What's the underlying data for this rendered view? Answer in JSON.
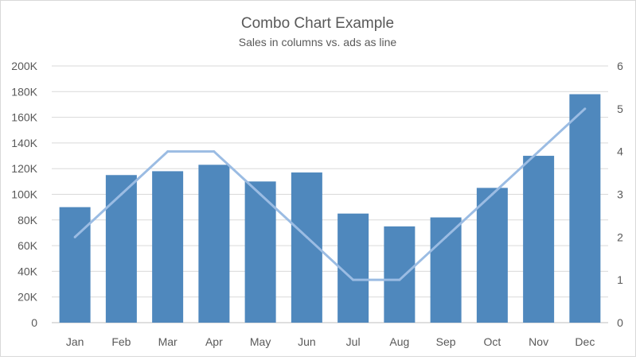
{
  "chart_data": {
    "type": "bar+line",
    "title": "Combo Chart Example",
    "subtitle": "Sales in columns vs. ads as line",
    "categories": [
      "Jan",
      "Feb",
      "Mar",
      "Apr",
      "May",
      "Jun",
      "Jul",
      "Aug",
      "Sep",
      "Oct",
      "Nov",
      "Dec"
    ],
    "series": [
      {
        "type": "bar",
        "axis": "left",
        "color": "#4f88bd",
        "values": [
          90000,
          115000,
          118000,
          123000,
          110000,
          117000,
          85000,
          75000,
          82000,
          105000,
          130000,
          178000
        ]
      },
      {
        "type": "line",
        "axis": "right",
        "color": "#9bbce3",
        "values": [
          2,
          3,
          4,
          4,
          3,
          2,
          1,
          1,
          2,
          3,
          4,
          5
        ]
      }
    ],
    "y_left": {
      "range": [
        0,
        200000
      ],
      "ticks": [
        "0",
        "20K",
        "40K",
        "60K",
        "80K",
        "100K",
        "120K",
        "140K",
        "160K",
        "180K",
        "200K"
      ]
    },
    "y_right": {
      "range": [
        0,
        6
      ],
      "ticks": [
        "0",
        "1",
        "2",
        "3",
        "4",
        "5",
        "6"
      ]
    },
    "grid": true,
    "legend": "none"
  }
}
